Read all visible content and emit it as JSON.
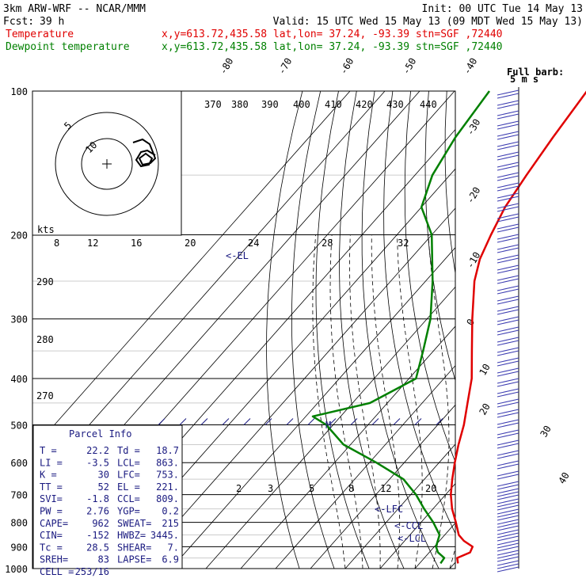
{
  "header": {
    "model": "3km ARW-WRF -- NCAR/MMM",
    "init": "Init: 00 UTC Tue 14 May 13",
    "fcst_label": "Fcst:",
    "fcst_value": "39 h",
    "valid": "Valid: 15 UTC Wed 15 May 13 (09 MDT Wed 15 May 13)"
  },
  "legend": [
    {
      "name": "Temperature",
      "color": "#e00000",
      "info": "x,y=613.72,435.58   lat,lon= 37.24, -93.39   stn=SGF ,72440"
    },
    {
      "name": "Dewpoint temperature",
      "color": "#008000",
      "info": "x,y=613.72,435.58   lat,lon= 37.24, -93.39   stn=SGF ,72440"
    }
  ],
  "hodograph": {
    "kts_label": "kts",
    "ring_labels": [
      "5",
      "10"
    ]
  },
  "barb_label": {
    "line1": "Full barb:",
    "line2": "5 m s"
  },
  "annotations": {
    "el": "<-EL",
    "lfc": "<-LFC",
    "ccl": "<-CCL",
    "lcl": "<-LCL",
    "m": "M"
  },
  "parcel_info": {
    "title": "Parcel Info",
    "rows": [
      [
        "T  =",
        "22.2",
        "Td =",
        "18.7"
      ],
      [
        "LI =",
        "-3.5",
        "LCL=",
        "863."
      ],
      [
        "K  =",
        "30",
        "LFC=",
        "753."
      ],
      [
        "TT =",
        "52",
        "EL =",
        "221."
      ],
      [
        "SVI=",
        "-1.8",
        "CCL=",
        "809."
      ],
      [
        "PW =",
        "2.76",
        "YGP=",
        "0.2"
      ],
      [
        "CAPE=",
        "962",
        "SWEAT=",
        "215"
      ],
      [
        "CIN=",
        "-152",
        "HWBZ=",
        "3445."
      ],
      [
        "Tc =",
        "28.5",
        "SHEAR=",
        "7."
      ],
      [
        "SREH=",
        "83",
        "LAPSE=",
        "6.9"
      ],
      [
        "CELL =",
        "253/16",
        "",
        ""
      ]
    ]
  },
  "chart_data": {
    "type": "line",
    "subtype": "skew-T log-P",
    "y_axis": {
      "quantity": "pressure (hPa)",
      "scale": "log",
      "range": [
        1000,
        100
      ],
      "ticks": [
        1000,
        900,
        800,
        700,
        600,
        500,
        400,
        300,
        200,
        100
      ]
    },
    "isotherm_labels": [
      "-80",
      "-70",
      "-60",
      "-50",
      "-40",
      "-30",
      "-20",
      "-10",
      "0",
      "10",
      "20",
      "30",
      "40"
    ],
    "theta_labels": [
      "370",
      "380",
      "390",
      "400",
      "410",
      "420",
      "430",
      "440"
    ],
    "theta_lower_labels": [
      "290",
      "280",
      "270"
    ],
    "mixing_ratio_labels": [
      "8",
      "12",
      "16",
      "20",
      "24",
      "28",
      "32"
    ],
    "mixing_ratio_lower_labels": [
      "2",
      "3",
      "5",
      "8",
      "12",
      "20"
    ],
    "series": [
      {
        "name": "Temperature",
        "color": "#e00000",
        "pressure": [
          975,
          950,
          925,
          900,
          875,
          850,
          800,
          750,
          700,
          650,
          600,
          550,
          500,
          450,
          400,
          350,
          300,
          250,
          225,
          200,
          175,
          150,
          125,
          100
        ],
        "values": [
          21,
          19.4,
          21.7,
          21,
          17,
          14,
          10,
          5.5,
          1.5,
          -2,
          -5.5,
          -9,
          -12.5,
          -17,
          -22,
          -29,
          -37,
          -46,
          -50,
          -53,
          -56,
          -58,
          -60,
          -62
        ]
      },
      {
        "name": "Dewpoint temperature",
        "color": "#008000",
        "pressure": [
          975,
          950,
          925,
          900,
          875,
          850,
          800,
          750,
          700,
          650,
          600,
          550,
          500,
          480,
          450,
          400,
          350,
          300,
          250,
          200,
          175,
          150,
          125,
          100
        ],
        "values": [
          16,
          15.7,
          12.5,
          10.5,
          9.5,
          8.5,
          3.5,
          -2.5,
          -8.5,
          -16,
          -28,
          -42,
          -52,
          -58,
          -45,
          -38,
          -43,
          -49,
          -58,
          -70,
          -80,
          -85,
          -88,
          -90
        ]
      }
    ]
  }
}
